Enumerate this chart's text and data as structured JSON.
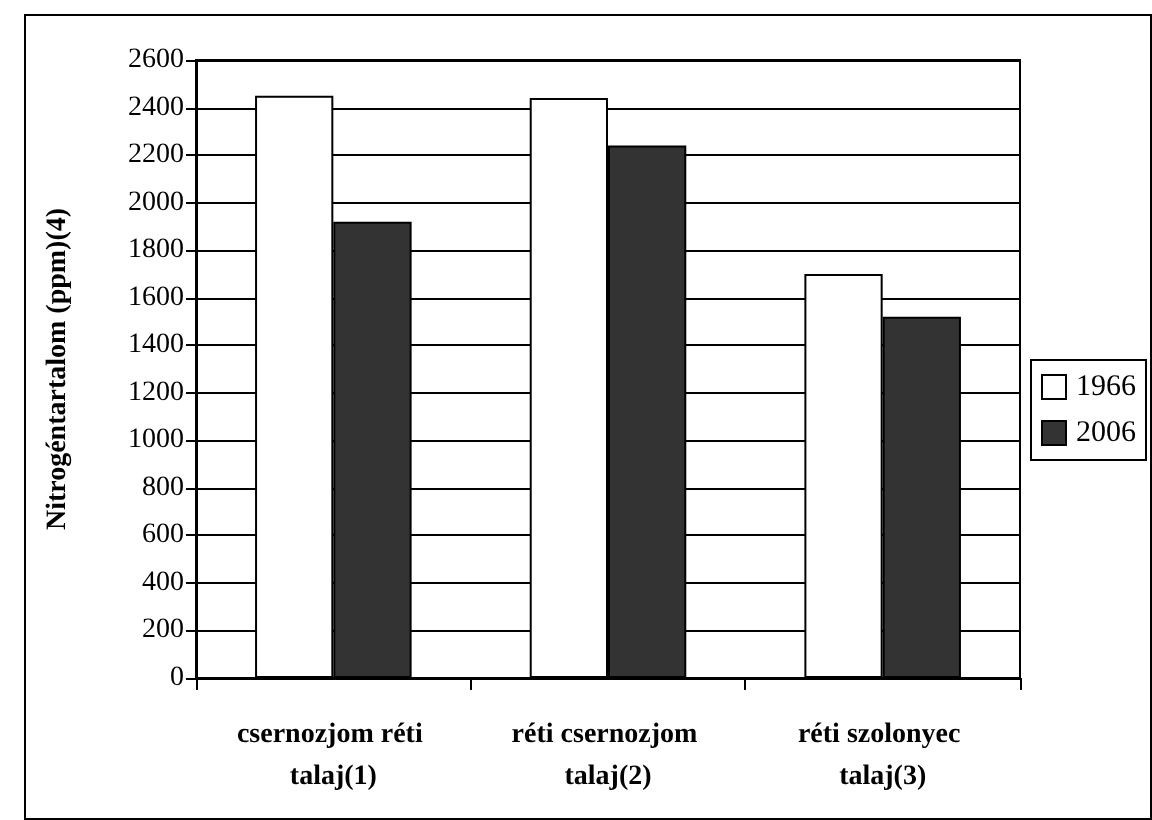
{
  "chart_data": {
    "type": "bar",
    "ylabel": "Nitrogéntartalom (ppm)(4)",
    "categories": [
      "csernozjom réti talaj(1)",
      "réti csernozjom talaj(2)",
      "réti szolonyec talaj(3)"
    ],
    "series": [
      {
        "name": "1966",
        "color": "#ffffff",
        "values": [
          2450,
          2440,
          1700
        ]
      },
      {
        "name": "2006",
        "color": "#333333",
        "values": [
          1920,
          2240,
          1520
        ]
      }
    ],
    "ylim": [
      0,
      2600
    ],
    "yticks": [
      0,
      200,
      400,
      600,
      800,
      1000,
      1200,
      1400,
      1600,
      1800,
      2000,
      2200,
      2400,
      2600
    ],
    "grid": "y",
    "legend": "right"
  }
}
